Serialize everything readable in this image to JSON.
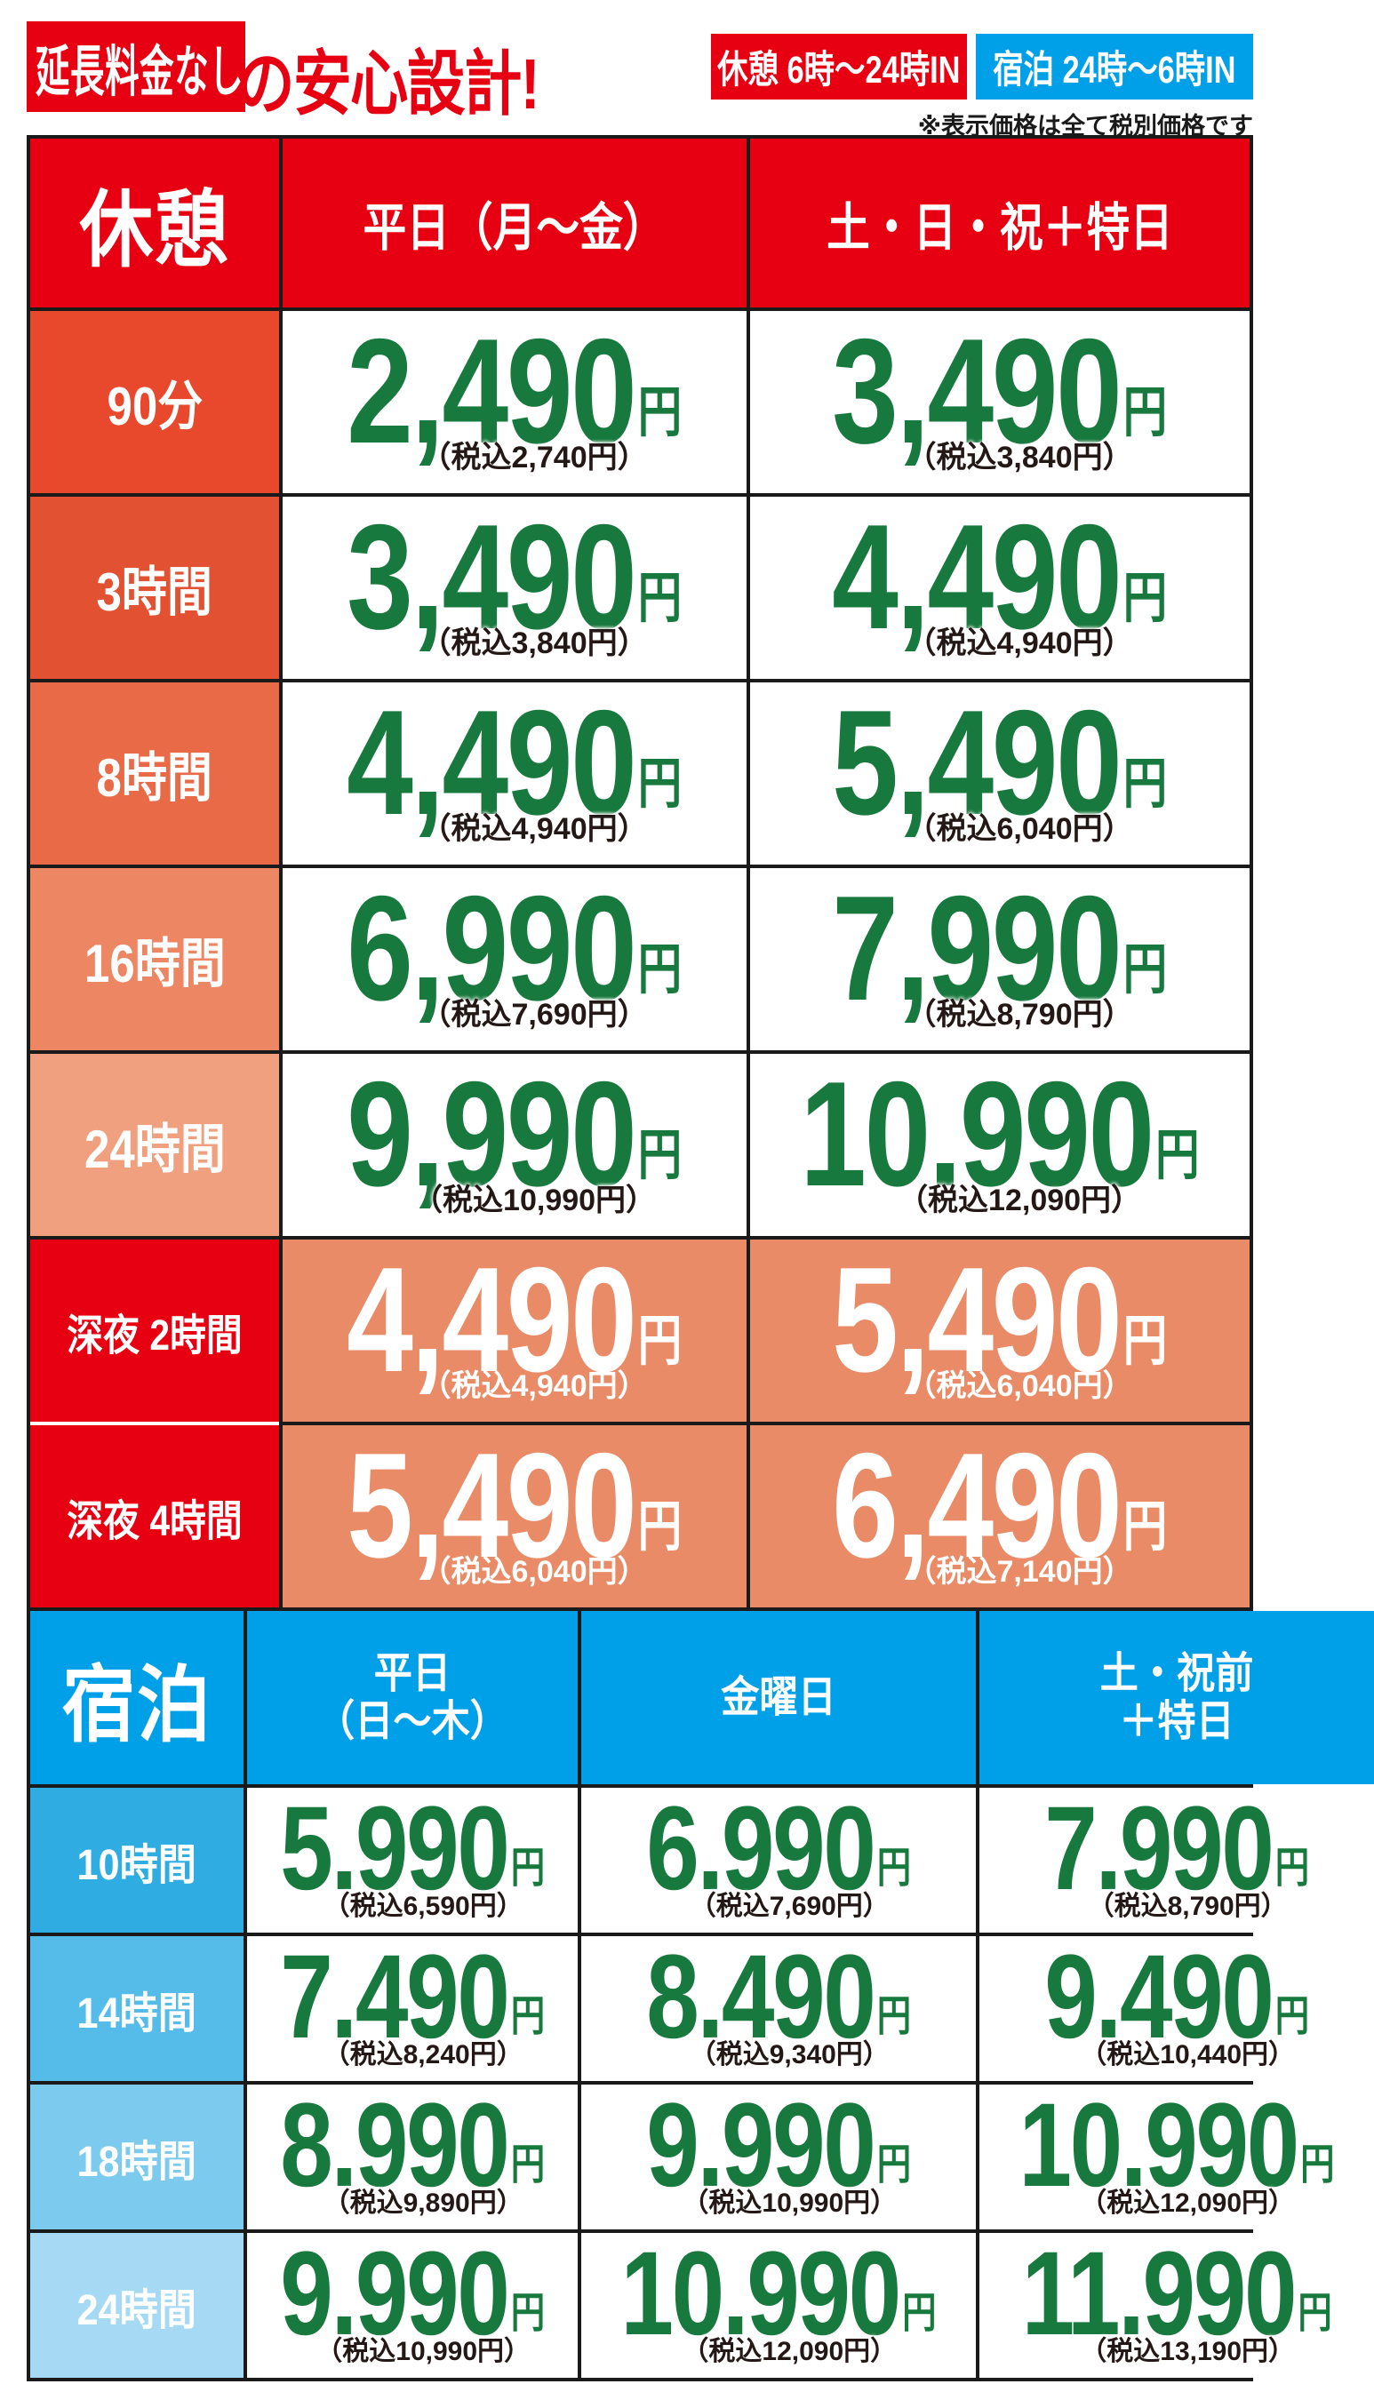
{
  "banner": {
    "headline_boxed": "延長料金なし",
    "headline_rest": "の安心設計!",
    "badge_kyukei": "休憩 6時〜24時IN",
    "badge_shukuhaku": "宿泊 24時〜6時IN",
    "tax_note": "※表示価格は全て税別価格です"
  },
  "yen_suffix": "円",
  "colors": {
    "red": "#e60012",
    "blue": "#00a0e9",
    "price_green": "#18793e",
    "tax_text": "#231815",
    "night_cell_bg": "#e98b66",
    "border": "#1a1a1a"
  },
  "kyukei": {
    "title": "休憩",
    "columns": [
      "平日（月〜金）",
      "土・日・祝＋特日"
    ],
    "rows": [
      {
        "label": "90分",
        "label_bg": "#e8492c",
        "prices": [
          {
            "amount": "2,490",
            "tax": "（税込2,740円）"
          },
          {
            "amount": "3,490",
            "tax": "（税込3,840円）"
          }
        ]
      },
      {
        "label": "3時間",
        "label_bg": "#e25232",
        "prices": [
          {
            "amount": "3,490",
            "tax": "（税込3,840円）"
          },
          {
            "amount": "4,490",
            "tax": "（税込4,940円）"
          }
        ]
      },
      {
        "label": "8時間",
        "label_bg": "#e96a47",
        "prices": [
          {
            "amount": "4,490",
            "tax": "（税込4,940円）"
          },
          {
            "amount": "5,490",
            "tax": "（税込6,040円）"
          }
        ]
      },
      {
        "label": "16時間",
        "label_bg": "#ed8663",
        "prices": [
          {
            "amount": "6,990",
            "tax": "（税込7,690円）"
          },
          {
            "amount": "7,990",
            "tax": "（税込8,790円）"
          }
        ]
      },
      {
        "label": "24時間",
        "label_bg": "#f0a07f",
        "prices": [
          {
            "amount": "9,990",
            "tax": "（税込10,990円）"
          },
          {
            "amount": "10.990",
            "tax": "（税込12,090円）"
          }
        ]
      },
      {
        "label": "深夜 2時間",
        "label_bg": "#e60012",
        "night": true,
        "prices": [
          {
            "amount": "4,490",
            "tax": "（税込4,940円）"
          },
          {
            "amount": "5,490",
            "tax": "（税込6,040円）"
          }
        ]
      },
      {
        "label": "深夜 4時間",
        "label_bg": "#e60012",
        "night": true,
        "prices": [
          {
            "amount": "5,490",
            "tax": "（税込6,040円）"
          },
          {
            "amount": "6,490",
            "tax": "（税込7,140円）"
          }
        ]
      }
    ]
  },
  "shukuhaku": {
    "title": "宿泊",
    "columns": [
      "平日\n（日〜木）",
      "金曜日",
      "土・祝前\n＋特日"
    ],
    "rows": [
      {
        "label": "10時間",
        "label_bg": "#2fade3",
        "prices": [
          {
            "amount": "5.990",
            "tax": "（税込6,590円）"
          },
          {
            "amount": "6.990",
            "tax": "（税込7,690円）"
          },
          {
            "amount": "7.990",
            "tax": "（税込8,790円）"
          }
        ]
      },
      {
        "label": "14時間",
        "label_bg": "#55bce9",
        "prices": [
          {
            "amount": "7.490",
            "tax": "（税込8,240円）"
          },
          {
            "amount": "8.490",
            "tax": "（税込9,340円）"
          },
          {
            "amount": "9.490",
            "tax": "（税込10,440円）"
          }
        ]
      },
      {
        "label": "18時間",
        "label_bg": "#7ccbee",
        "prices": [
          {
            "amount": "8.990",
            "tax": "（税込9,890円）"
          },
          {
            "amount": "9.990",
            "tax": "（税込10,990円）"
          },
          {
            "amount": "10.990",
            "tax": "（税込12,090円）"
          }
        ]
      },
      {
        "label": "24時間",
        "label_bg": "#a6daf4",
        "prices": [
          {
            "amount": "9.990",
            "tax": "（税込10,990円）"
          },
          {
            "amount": "10.990",
            "tax": "（税込12,090円）"
          },
          {
            "amount": "11.990",
            "tax": "（税込13,190円）"
          }
        ]
      }
    ]
  }
}
